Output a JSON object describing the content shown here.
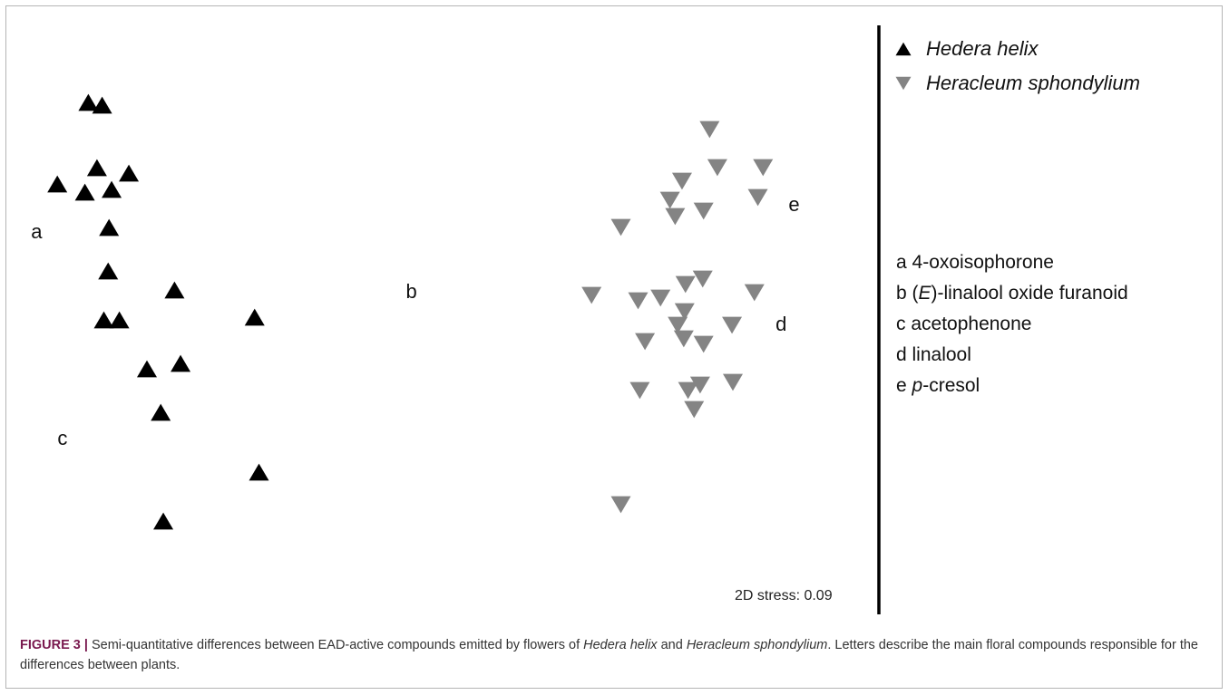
{
  "chart_data": {
    "type": "scatter",
    "title": "",
    "xlabel": "",
    "ylabel": "",
    "xlim": [
      0,
      1
    ],
    "ylim": [
      0,
      1
    ],
    "grid": false,
    "legend_position": "right",
    "stress_label": "2D stress: 0.09",
    "series": [
      {
        "name": "Hedera helix",
        "marker": "triangle-up",
        "color": "#000000",
        "points": [
          {
            "x": 0.092,
            "y": 0.92
          },
          {
            "x": 0.108,
            "y": 0.915
          },
          {
            "x": 0.102,
            "y": 0.8
          },
          {
            "x": 0.139,
            "y": 0.79
          },
          {
            "x": 0.056,
            "y": 0.77
          },
          {
            "x": 0.088,
            "y": 0.755
          },
          {
            "x": 0.119,
            "y": 0.76
          },
          {
            "x": 0.116,
            "y": 0.69
          },
          {
            "x": 0.115,
            "y": 0.61
          },
          {
            "x": 0.192,
            "y": 0.575
          },
          {
            "x": 0.11,
            "y": 0.52
          },
          {
            "x": 0.128,
            "y": 0.52
          },
          {
            "x": 0.285,
            "y": 0.525
          },
          {
            "x": 0.199,
            "y": 0.44
          },
          {
            "x": 0.16,
            "y": 0.43
          },
          {
            "x": 0.176,
            "y": 0.35
          },
          {
            "x": 0.29,
            "y": 0.24
          },
          {
            "x": 0.179,
            "y": 0.15
          }
        ]
      },
      {
        "name": "Heracleum sphondylium",
        "marker": "triangle-down",
        "color": "#848484",
        "points": [
          {
            "x": 0.813,
            "y": 0.87
          },
          {
            "x": 0.822,
            "y": 0.8
          },
          {
            "x": 0.875,
            "y": 0.8
          },
          {
            "x": 0.781,
            "y": 0.775
          },
          {
            "x": 0.869,
            "y": 0.745
          },
          {
            "x": 0.767,
            "y": 0.74
          },
          {
            "x": 0.773,
            "y": 0.71
          },
          {
            "x": 0.806,
            "y": 0.72
          },
          {
            "x": 0.71,
            "y": 0.69
          },
          {
            "x": 0.805,
            "y": 0.595
          },
          {
            "x": 0.785,
            "y": 0.585
          },
          {
            "x": 0.865,
            "y": 0.57
          },
          {
            "x": 0.676,
            "y": 0.565
          },
          {
            "x": 0.73,
            "y": 0.555
          },
          {
            "x": 0.756,
            "y": 0.56
          },
          {
            "x": 0.784,
            "y": 0.535
          },
          {
            "x": 0.776,
            "y": 0.51
          },
          {
            "x": 0.839,
            "y": 0.51
          },
          {
            "x": 0.738,
            "y": 0.48
          },
          {
            "x": 0.783,
            "y": 0.485
          },
          {
            "x": 0.806,
            "y": 0.475
          },
          {
            "x": 0.84,
            "y": 0.405
          },
          {
            "x": 0.802,
            "y": 0.4
          },
          {
            "x": 0.732,
            "y": 0.39
          },
          {
            "x": 0.788,
            "y": 0.39
          },
          {
            "x": 0.795,
            "y": 0.355
          },
          {
            "x": 0.71,
            "y": 0.18
          }
        ]
      }
    ],
    "annotations": [
      {
        "text": "a",
        "x": 0.032,
        "y": 0.68
      },
      {
        "text": "b",
        "x": 0.467,
        "y": 0.57
      },
      {
        "text": "c",
        "x": 0.062,
        "y": 0.3
      },
      {
        "text": "d",
        "x": 0.896,
        "y": 0.51
      },
      {
        "text": "e",
        "x": 0.911,
        "y": 0.73
      }
    ],
    "compound_key": [
      {
        "letter": "a",
        "prefix": "",
        "italic": "",
        "rest": "4-oxoisophorone"
      },
      {
        "letter": "b",
        "prefix": "(",
        "italic": "E",
        "rest": ")-linalool oxide furanoid"
      },
      {
        "letter": "c",
        "prefix": "",
        "italic": "",
        "rest": "acetophenone"
      },
      {
        "letter": "d",
        "prefix": "",
        "italic": "",
        "rest": "linalool"
      },
      {
        "letter": "e",
        "prefix": "",
        "italic": "p",
        "rest": "-cresol"
      }
    ]
  },
  "caption": {
    "label": "FIGURE 3 |",
    "part1": " Semi-quantitative differences between EAD-active compounds emitted by flowers of ",
    "species1": "Hedera helix",
    "part2": " and ",
    "species2": "Heracleum sphondylium",
    "part3": ". Letters describe the main floral compounds responsible for the differences between plants."
  }
}
